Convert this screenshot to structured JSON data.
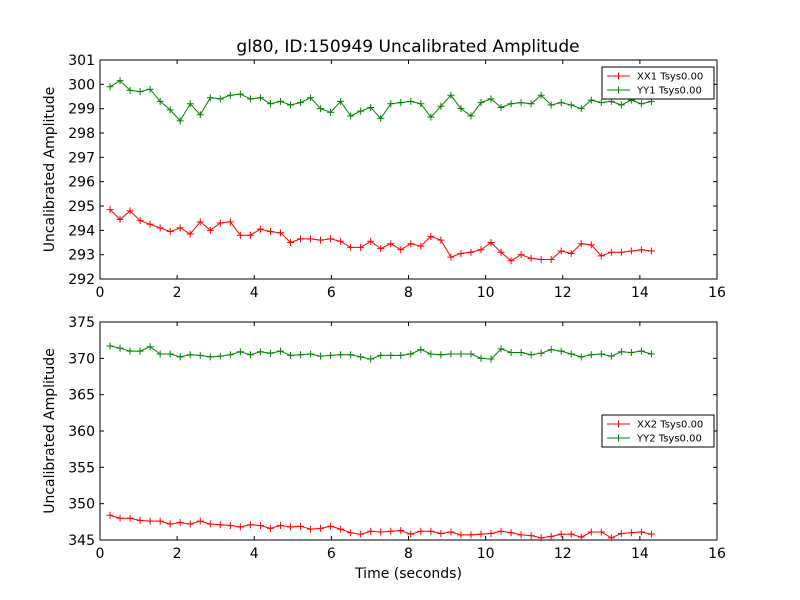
{
  "figure_title": "gl80, ID:150949 Uncalibrated Amplitude",
  "chart_data": [
    {
      "type": "line",
      "ylabel": "Uncalibrated Amplitude",
      "xlabel": "",
      "xlim": [
        0,
        16
      ],
      "ylim": [
        292,
        301
      ],
      "xticks": [
        0,
        2,
        4,
        6,
        8,
        10,
        12,
        14,
        16
      ],
      "yticks": [
        292,
        293,
        294,
        295,
        296,
        297,
        298,
        299,
        300,
        301
      ],
      "legend_position": "top-right",
      "grid": false,
      "x": [
        0.26,
        0.52,
        0.78,
        1.04,
        1.3,
        1.56,
        1.82,
        2.08,
        2.34,
        2.6,
        2.86,
        3.12,
        3.38,
        3.64,
        3.9,
        4.16,
        4.42,
        4.68,
        4.94,
        5.2,
        5.46,
        5.72,
        5.98,
        6.24,
        6.5,
        6.76,
        7.02,
        7.28,
        7.54,
        7.8,
        8.06,
        8.32,
        8.58,
        8.84,
        9.1,
        9.36,
        9.62,
        9.88,
        10.14,
        10.4,
        10.66,
        10.92,
        11.18,
        11.44,
        11.7,
        11.96,
        12.22,
        12.48,
        12.74,
        13.0,
        13.26,
        13.52,
        13.78,
        14.04,
        14.3
      ],
      "series": [
        {
          "name": "XX1 Tsys0.00",
          "color": "#ff0000",
          "values": [
            294.85,
            294.45,
            294.8,
            294.4,
            294.25,
            294.1,
            293.95,
            294.1,
            293.85,
            294.35,
            294.0,
            294.3,
            294.35,
            293.8,
            293.8,
            294.05,
            293.95,
            293.9,
            293.5,
            293.65,
            293.65,
            293.6,
            293.65,
            293.55,
            293.3,
            293.3,
            293.55,
            293.25,
            293.45,
            293.2,
            293.45,
            293.35,
            293.75,
            293.6,
            292.9,
            293.05,
            293.1,
            293.2,
            293.5,
            293.1,
            292.75,
            293.0,
            292.85,
            292.8,
            292.8,
            293.15,
            293.05,
            293.45,
            293.4,
            292.95,
            293.1,
            293.1,
            293.15,
            293.2,
            293.15
          ]
        },
        {
          "name": "YY1 Tsys0.00",
          "color": "#008000",
          "values": [
            299.9,
            300.15,
            299.75,
            299.7,
            299.8,
            299.3,
            298.95,
            298.5,
            299.2,
            298.75,
            299.45,
            299.4,
            299.55,
            299.6,
            299.4,
            299.45,
            299.2,
            299.3,
            299.15,
            299.25,
            299.45,
            299.0,
            298.85,
            299.3,
            298.7,
            298.9,
            299.05,
            298.6,
            299.2,
            299.25,
            299.3,
            299.2,
            298.65,
            299.1,
            299.55,
            299.0,
            298.7,
            299.25,
            299.4,
            299.05,
            299.2,
            299.25,
            299.2,
            299.55,
            299.15,
            299.25,
            299.15,
            299.0,
            299.35,
            299.25,
            299.3,
            299.15,
            299.35,
            299.2,
            299.3
          ]
        }
      ]
    },
    {
      "type": "line",
      "ylabel": "Uncalibrated Amplitude",
      "xlabel": "Time (seconds)",
      "xlim": [
        0,
        16
      ],
      "ylim": [
        345,
        375
      ],
      "xticks": [
        0,
        2,
        4,
        6,
        8,
        10,
        12,
        14,
        16
      ],
      "yticks": [
        345,
        350,
        355,
        360,
        365,
        370,
        375
      ],
      "legend_position": "center-right",
      "grid": false,
      "x": [
        0.26,
        0.52,
        0.78,
        1.04,
        1.3,
        1.56,
        1.82,
        2.08,
        2.34,
        2.6,
        2.86,
        3.12,
        3.38,
        3.64,
        3.9,
        4.16,
        4.42,
        4.68,
        4.94,
        5.2,
        5.46,
        5.72,
        5.98,
        6.24,
        6.5,
        6.76,
        7.02,
        7.28,
        7.54,
        7.8,
        8.06,
        8.32,
        8.58,
        8.84,
        9.1,
        9.36,
        9.62,
        9.88,
        10.14,
        10.4,
        10.66,
        10.92,
        11.18,
        11.44,
        11.7,
        11.96,
        12.22,
        12.48,
        12.74,
        13.0,
        13.26,
        13.52,
        13.78,
        14.04,
        14.3
      ],
      "series": [
        {
          "name": "XX2 Tsys0.00",
          "color": "#ff0000",
          "values": [
            348.4,
            348.0,
            348.0,
            347.7,
            347.6,
            347.6,
            347.2,
            347.4,
            347.2,
            347.6,
            347.2,
            347.1,
            347.0,
            346.8,
            347.1,
            347.0,
            346.6,
            347.0,
            346.8,
            346.9,
            346.5,
            346.6,
            346.9,
            346.5,
            346.0,
            345.8,
            346.2,
            346.1,
            346.2,
            346.3,
            345.8,
            346.2,
            346.2,
            345.9,
            346.1,
            345.7,
            345.7,
            345.8,
            345.9,
            346.2,
            346.0,
            345.7,
            345.6,
            345.3,
            345.5,
            345.8,
            345.8,
            345.4,
            346.1,
            346.1,
            345.3,
            345.9,
            346.0,
            346.1,
            345.8
          ]
        },
        {
          "name": "YY2 Tsys0.00",
          "color": "#008000",
          "values": [
            371.7,
            371.4,
            371.0,
            371.0,
            371.6,
            370.6,
            370.6,
            370.2,
            370.5,
            370.4,
            370.2,
            370.3,
            370.5,
            370.9,
            370.5,
            370.9,
            370.7,
            371.0,
            370.4,
            370.5,
            370.6,
            370.3,
            370.4,
            370.5,
            370.5,
            370.2,
            369.9,
            370.4,
            370.4,
            370.4,
            370.6,
            371.2,
            370.6,
            370.5,
            370.6,
            370.6,
            370.6,
            370.0,
            369.9,
            371.3,
            370.8,
            370.8,
            370.5,
            370.7,
            371.2,
            371.0,
            370.6,
            370.2,
            370.5,
            370.6,
            370.3,
            370.9,
            370.8,
            371.0,
            370.6
          ]
        }
      ]
    }
  ]
}
